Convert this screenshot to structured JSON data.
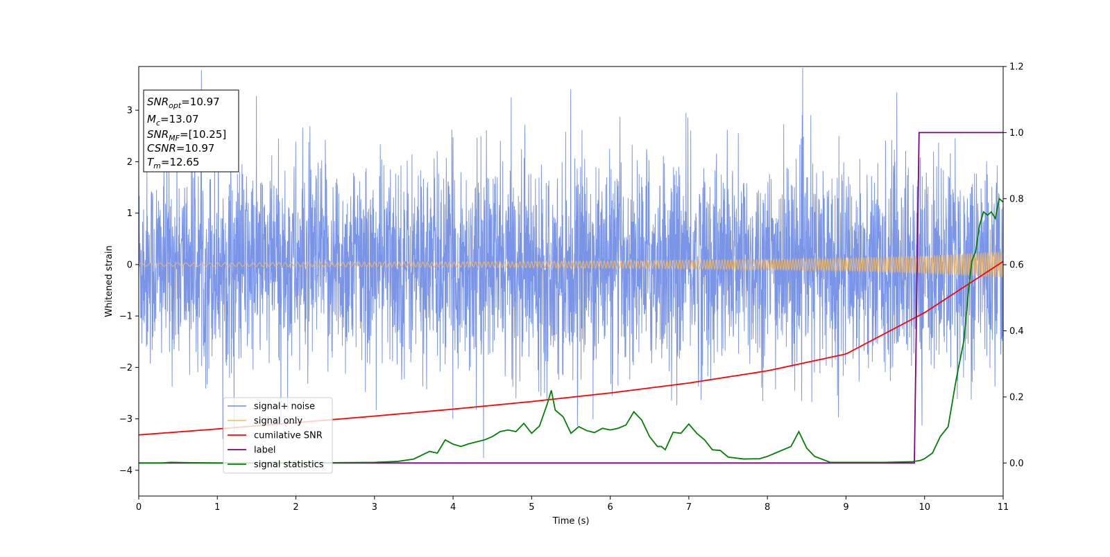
{
  "chart_data": {
    "type": "line",
    "xlabel": "Time (s)",
    "ylabel": "Whitened strain",
    "xlim": [
      0,
      11
    ],
    "ylim_left": [
      -4.5,
      3.85
    ],
    "ylim_right": [
      -0.1,
      1.2
    ],
    "x_ticks": [
      0,
      1,
      2,
      3,
      4,
      5,
      6,
      7,
      8,
      9,
      10,
      11
    ],
    "y_ticks_left": [
      -4,
      -3,
      -2,
      -1,
      0,
      1,
      2,
      3
    ],
    "y_ticks_right": [
      0.0,
      0.2,
      0.4,
      0.6,
      0.8,
      1.0,
      1.2
    ],
    "grid": false,
    "legend_placement": "lower-left",
    "annotation": [
      {
        "base": "SNR",
        "sub": "opt",
        "value": "=10.97"
      },
      {
        "base": "M",
        "sub": "c",
        "value": "=13.07"
      },
      {
        "base": "SNR",
        "sub": "MF",
        "value": "=[10.25]"
      },
      {
        "base": "CSNR",
        "sub": "",
        "value": "=10.97"
      },
      {
        "base": "T",
        "sub": "m",
        "value": "=12.65"
      }
    ],
    "series": [
      {
        "name": "signal+ noise",
        "axis": "left",
        "color": "#6b8ae6",
        "envelope": {
          "x": [
            0,
            1,
            2,
            3,
            4,
            5,
            6,
            7,
            8,
            9,
            10,
            11
          ],
          "upper": [
            2.5,
            2.6,
            2.6,
            2.6,
            2.6,
            2.6,
            2.6,
            2.7,
            2.6,
            2.6,
            2.7,
            2.6
          ],
          "lower": [
            -2.5,
            -2.6,
            -2.6,
            -2.6,
            -2.6,
            -2.6,
            -2.6,
            -2.7,
            -2.6,
            -2.6,
            -2.6,
            -2.6
          ]
        }
      },
      {
        "name": "signal only",
        "axis": "left",
        "color": "#f5b759",
        "amplitude": {
          "x": [
            0,
            2,
            4,
            6,
            8,
            9,
            10,
            11
          ],
          "y": [
            0.03,
            0.04,
            0.05,
            0.07,
            0.1,
            0.12,
            0.17,
            0.25
          ]
        }
      },
      {
        "name": "cumilative SNR",
        "axis": "right",
        "color": "#ff0000",
        "x": [
          0,
          1,
          2,
          3,
          4,
          5,
          6,
          7,
          8,
          9,
          10,
          11
        ],
        "y": [
          0.085,
          0.103,
          0.122,
          0.142,
          0.163,
          0.186,
          0.212,
          0.242,
          0.279,
          0.33,
          0.455,
          0.61
        ]
      },
      {
        "name": "label",
        "axis": "right",
        "color": "#800080",
        "x": [
          0,
          9.87,
          9.93,
          11
        ],
        "y": [
          0.0,
          0.0,
          1.0,
          1.0
        ]
      },
      {
        "name": "signal statistics",
        "axis": "right",
        "color": "#008000",
        "x": [
          0,
          0.3,
          0.4,
          0.6,
          1.0,
          2.0,
          3.0,
          3.3,
          3.5,
          3.7,
          3.8,
          3.9,
          4.0,
          4.1,
          4.2,
          4.3,
          4.4,
          4.5,
          4.6,
          4.7,
          4.8,
          4.9,
          5.0,
          5.1,
          5.2,
          5.25,
          5.3,
          5.4,
          5.5,
          5.6,
          5.7,
          5.8,
          5.9,
          6.0,
          6.1,
          6.2,
          6.3,
          6.4,
          6.5,
          6.6,
          6.65,
          6.7,
          6.8,
          6.9,
          7.0,
          7.1,
          7.2,
          7.3,
          7.4,
          7.5,
          7.7,
          7.9,
          8.0,
          8.1,
          8.3,
          8.4,
          8.5,
          8.6,
          8.8,
          9.0,
          9.5,
          9.85,
          9.95,
          10.0,
          10.1,
          10.2,
          10.3,
          10.4,
          10.5,
          10.55,
          10.6,
          10.65,
          10.7,
          10.75,
          10.8,
          10.85,
          10.9,
          10.95,
          11.0
        ],
        "y": [
          0.0,
          0.0,
          0.002,
          0.001,
          0.0,
          0.0,
          0.002,
          0.005,
          0.012,
          0.035,
          0.03,
          0.07,
          0.057,
          0.05,
          0.058,
          0.064,
          0.07,
          0.08,
          0.095,
          0.1,
          0.095,
          0.12,
          0.09,
          0.112,
          0.18,
          0.22,
          0.16,
          0.14,
          0.09,
          0.11,
          0.098,
          0.092,
          0.105,
          0.1,
          0.105,
          0.115,
          0.155,
          0.13,
          0.08,
          0.05,
          0.05,
          0.04,
          0.093,
          0.09,
          0.118,
          0.09,
          0.07,
          0.04,
          0.038,
          0.018,
          0.012,
          0.013,
          0.02,
          0.03,
          0.05,
          0.095,
          0.045,
          0.02,
          0.002,
          0.002,
          0.002,
          0.004,
          0.008,
          0.013,
          0.03,
          0.08,
          0.11,
          0.25,
          0.37,
          0.5,
          0.61,
          0.64,
          0.72,
          0.76,
          0.75,
          0.76,
          0.74,
          0.8,
          0.79
        ]
      }
    ]
  }
}
